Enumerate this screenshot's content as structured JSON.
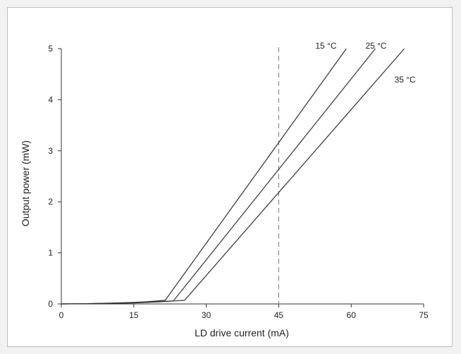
{
  "chart_data": {
    "type": "line",
    "title": "",
    "xlabel": "LD drive current (mA)",
    "ylabel": "Output power (mW)",
    "xlim": [
      0,
      75
    ],
    "ylim": [
      0,
      5
    ],
    "xticks": [
      0,
      15,
      30,
      45,
      60,
      75
    ],
    "yticks": [
      0,
      1,
      2,
      3,
      4,
      5
    ],
    "grid": false,
    "legend": "none",
    "series": [
      {
        "name": "15 °C",
        "color": "#333333",
        "x": [
          0,
          5,
          10,
          15,
          18,
          21.5,
          59
        ],
        "y": [
          0,
          0.005,
          0.015,
          0.03,
          0.045,
          0.07,
          5
        ]
      },
      {
        "name": "25 °C",
        "color": "#333333",
        "x": [
          0,
          5,
          10,
          15,
          20,
          23.2,
          65
        ],
        "y": [
          0,
          0.004,
          0.012,
          0.025,
          0.045,
          0.06,
          5
        ]
      },
      {
        "name": "35 °C",
        "color": "#333333",
        "x": [
          0,
          5,
          10,
          15,
          20,
          25.5,
          71
        ],
        "y": [
          0,
          0.003,
          0.01,
          0.02,
          0.04,
          0.07,
          5
        ]
      }
    ],
    "reference_lines": [
      {
        "axis": "x",
        "value": 45,
        "style": "dashed",
        "color": "#888888"
      }
    ],
    "series_label_anchor": [
      {
        "x": 59,
        "y": 5
      },
      {
        "x": 65,
        "y": 5
      },
      {
        "x": 71,
        "y": 4.45
      }
    ]
  }
}
